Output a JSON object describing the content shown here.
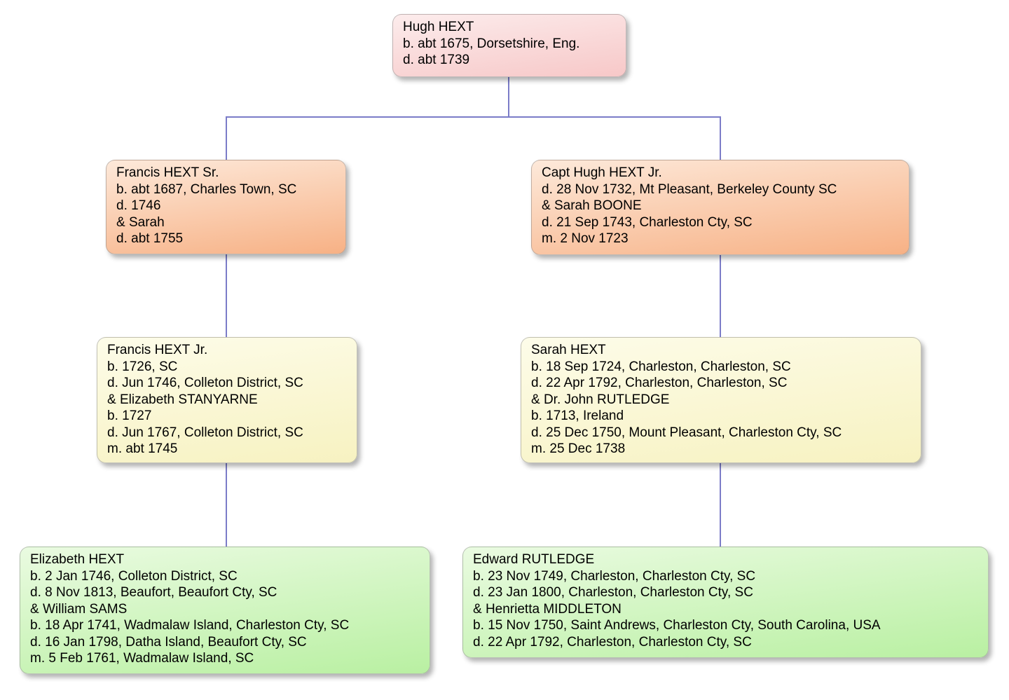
{
  "connector_color": "#7b7cc8",
  "palette": {
    "generation1": {
      "top": "#fcecec",
      "bottom": "#f7c8c8"
    },
    "generation2": {
      "top": "#fde9da",
      "bottom": "#f7b185"
    },
    "generation3": {
      "top": "#fdfce9",
      "bottom": "#f7f2c1"
    },
    "generation4": {
      "top": "#eafbe1",
      "bottom": "#b9f0a2"
    }
  },
  "nodes": [
    {
      "id": "hugh-hext",
      "palette": "generation1",
      "lines": [
        "Hugh HEXT",
        "b. abt 1675, Dorsetshire, Eng.",
        "d. abt 1739"
      ]
    },
    {
      "id": "francis-hext-sr",
      "palette": "generation2",
      "lines": [
        "Francis HEXT Sr.",
        "b. abt 1687, Charles Town, SC",
        "d. 1746",
        "& Sarah",
        "d. abt 1755"
      ]
    },
    {
      "id": "capt-hugh-hext-jr",
      "palette": "generation2",
      "lines": [
        "Capt Hugh HEXT Jr.",
        "d. 28 Nov 1732, Mt Pleasant, Berkeley County SC",
        "& Sarah BOONE",
        "d. 21 Sep 1743, Charleston Cty, SC",
        "m. 2 Nov 1723"
      ]
    },
    {
      "id": "francis-hext-jr",
      "palette": "generation3",
      "lines": [
        "Francis HEXT Jr.",
        "b. 1726, SC",
        "d. Jun 1746, Colleton District, SC",
        "& Elizabeth STANYARNE",
        "b. 1727",
        "d. Jun 1767, Colleton District, SC",
        "m. abt 1745"
      ]
    },
    {
      "id": "sarah-hext",
      "palette": "generation3",
      "lines": [
        "Sarah HEXT",
        "b. 18 Sep 1724, Charleston, Charleston, SC",
        "d. 22 Apr 1792, Charleston, Charleston, SC",
        "& Dr. John RUTLEDGE",
        "b. 1713, Ireland",
        "d. 25 Dec 1750, Mount Pleasant, Charleston Cty, SC",
        "m. 25 Dec 1738"
      ]
    },
    {
      "id": "elizabeth-hext",
      "palette": "generation4",
      "lines": [
        "Elizabeth HEXT",
        "b. 2 Jan 1746, Colleton District, SC",
        "d. 8 Nov 1813, Beaufort, Beaufort Cty, SC",
        "& William SAMS",
        "b. 18 Apr 1741, Wadmalaw Island, Charleston Cty, SC",
        "d. 16 Jan 1798, Datha Island, Beaufort Cty, SC",
        "m. 5 Feb 1761, Wadmalaw Island, SC"
      ]
    },
    {
      "id": "edward-rutledge",
      "palette": "generation4",
      "lines": [
        "Edward RUTLEDGE",
        "b. 23 Nov 1749, Charleston, Charleston Cty, SC",
        "d. 23 Jan 1800, Charleston, Charleston Cty, SC",
        "& Henrietta MIDDLETON",
        "b. 15 Nov 1750, Saint Andrews, Charleston Cty, South Carolina, USA",
        "d. 22 Apr 1792, Charleston, Charleston Cty, SC"
      ]
    }
  ]
}
